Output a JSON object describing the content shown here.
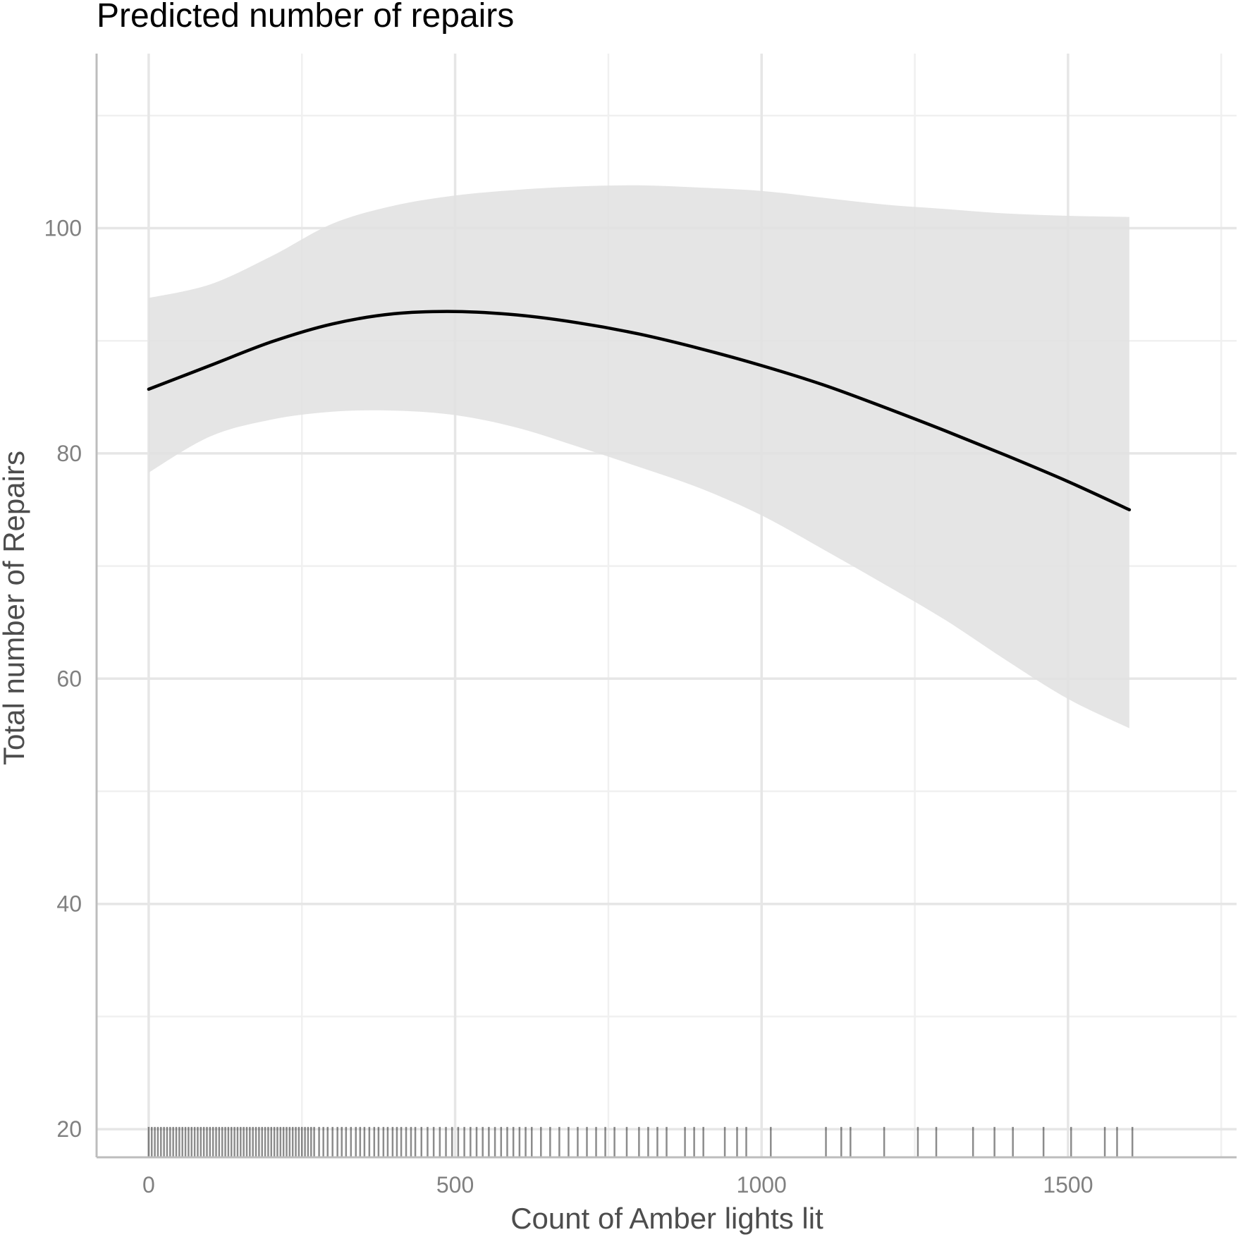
{
  "chart_data": {
    "type": "line",
    "title": "Predicted number of repairs",
    "xlabel": "Count of Amber lights lit",
    "ylabel": "Total number of Repairs",
    "xlim": [
      -85,
      1775
    ],
    "ylim": [
      17.5,
      115.5
    ],
    "x_ticks": [
      0,
      500,
      1000,
      1500
    ],
    "x_tick_labels": [
      "0",
      "500",
      "1000",
      "1500"
    ],
    "x_minor_ticks": [
      250,
      750,
      1250,
      1750
    ],
    "y_ticks": [
      20,
      40,
      60,
      80,
      100
    ],
    "y_tick_labels": [
      "20",
      "40",
      "60",
      "80",
      "100"
    ],
    "y_minor_ticks": [
      30,
      50,
      70,
      90,
      110
    ],
    "grid": true,
    "series": [
      {
        "type": "line",
        "color": "#000000",
        "x": [
          0,
          100,
          200,
          300,
          400,
          500,
          600,
          700,
          800,
          900,
          1000,
          1100,
          1200,
          1300,
          1400,
          1500,
          1600
        ],
        "y": [
          85.7,
          87.8,
          89.9,
          91.5,
          92.4,
          92.6,
          92.3,
          91.6,
          90.6,
          89.3,
          87.8,
          86.1,
          84.1,
          82.0,
          79.8,
          77.5,
          75.0
        ]
      }
    ],
    "confidence_band": {
      "color": "#e0e0e0",
      "x": [
        0,
        100,
        200,
        300,
        400,
        500,
        600,
        700,
        800,
        900,
        1000,
        1100,
        1200,
        1300,
        1400,
        1500,
        1600
      ],
      "upper": [
        93.8,
        95.0,
        97.5,
        100.4,
        102.0,
        102.9,
        103.4,
        103.7,
        103.8,
        103.6,
        103.3,
        102.7,
        102.1,
        101.7,
        101.3,
        101.1,
        101.0
      ],
      "lower": [
        78.3,
        81.5,
        83.0,
        83.7,
        83.8,
        83.4,
        82.3,
        80.6,
        78.8,
        76.9,
        74.5,
        71.5,
        68.4,
        65.2,
        61.6,
        58.2,
        55.6
      ]
    },
    "rug": {
      "color": "#000000",
      "y_from": 17.5,
      "y_to": 20.2,
      "x": [
        0,
        5,
        10,
        15,
        20,
        25,
        30,
        35,
        40,
        45,
        50,
        55,
        60,
        65,
        70,
        75,
        80,
        85,
        90,
        95,
        100,
        105,
        110,
        115,
        120,
        125,
        130,
        135,
        140,
        145,
        150,
        155,
        160,
        165,
        170,
        175,
        180,
        185,
        190,
        195,
        200,
        205,
        210,
        215,
        220,
        225,
        230,
        235,
        240,
        245,
        250,
        255,
        260,
        265,
        270,
        278,
        285,
        292,
        300,
        308,
        315,
        322,
        330,
        338,
        345,
        352,
        360,
        368,
        375,
        383,
        390,
        398,
        405,
        412,
        420,
        428,
        435,
        445,
        455,
        465,
        475,
        485,
        495,
        505,
        515,
        525,
        535,
        545,
        555,
        565,
        575,
        585,
        595,
        605,
        615,
        625,
        640,
        655,
        670,
        685,
        700,
        715,
        730,
        745,
        760,
        780,
        800,
        815,
        830,
        845,
        875,
        890,
        905,
        940,
        960,
        975,
        1015,
        1105,
        1130,
        1145,
        1200,
        1255,
        1285,
        1345,
        1380,
        1410,
        1460,
        1505,
        1560,
        1580,
        1605
      ]
    }
  }
}
